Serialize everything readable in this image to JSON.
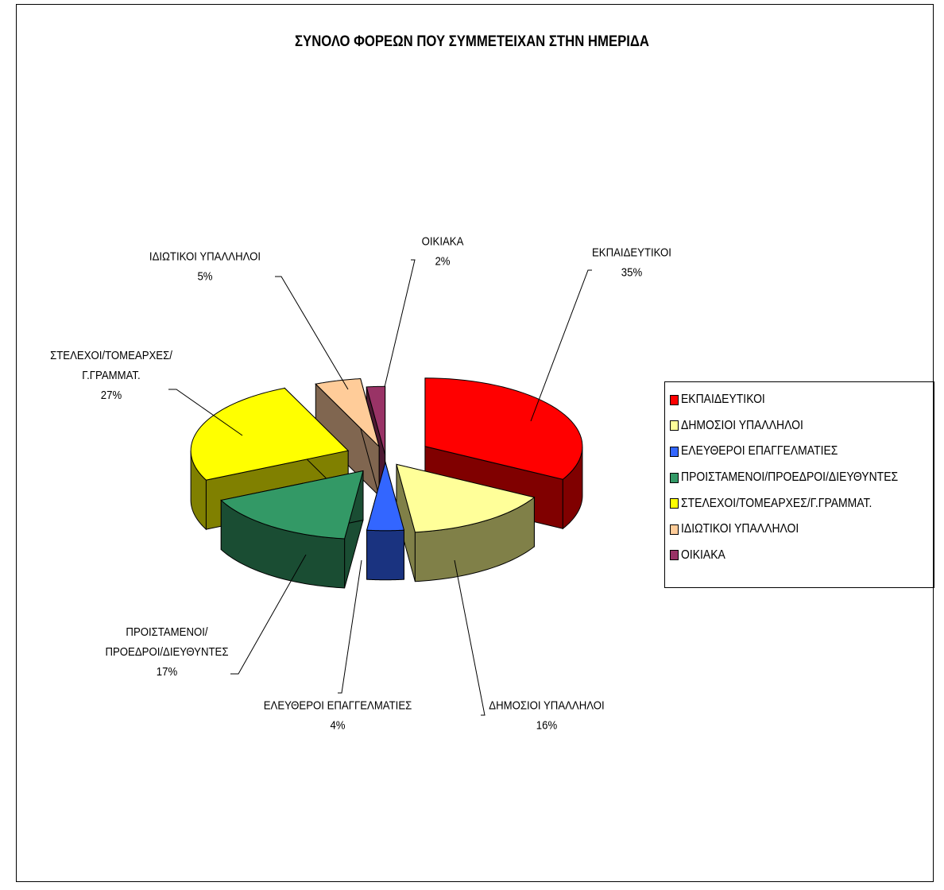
{
  "chart_data": {
    "type": "pie",
    "title": "ΣΥΝΟΛΟ ΦΟΡΕΩΝ ΠΟΥ ΣΥΜΜΕΤΕΙΧΑΝ ΣΤΗΝ ΗΜΕΡΙΔΑ",
    "three_d": true,
    "exploded": true,
    "legend_position": "right",
    "slices": [
      {
        "name": "ΕΚΠΑΙΔΕΥΤΙΚΟΙ",
        "value": 35,
        "label": "35%",
        "color": "#ff0000",
        "side_color": "#800000",
        "chart_label_lines": [
          "ΕΚΠΑΙΔΕΥΤΙΚΟΙ",
          "35%"
        ]
      },
      {
        "name": "ΔΗΜΟΣΙΟΙ ΥΠΑΛΛΗΛΟΙ",
        "value": 16,
        "label": "16%",
        "color": "#ffff99",
        "side_color": "#808048",
        "chart_label_lines": [
          "ΔΗΜΟΣΙΟΙ ΥΠΑΛΛΗΛΟΙ",
          "16%"
        ]
      },
      {
        "name": "ΕΛΕΥΘΕΡΟΙ ΕΠΑΓΓΕΛΜΑΤΙΕΣ",
        "value": 4,
        "label": "4%",
        "color": "#3366ff",
        "side_color": "#1a3380",
        "chart_label_lines": [
          "ΕΛΕΥΘΕΡΟΙ ΕΠΑΓΓΕΛΜΑΤΙΕΣ",
          "4%"
        ]
      },
      {
        "name": "ΠΡΟΙΣΤΑΜΕΝΟΙ/ΠΡΟΕΔΡΟΙ/ΔΙΕΥΘΥΝΤΕΣ",
        "value": 17,
        "label": "17%",
        "color": "#339966",
        "side_color": "#1a4d33",
        "chart_label_lines": [
          "ΠΡΟΙΣΤΑΜΕΝΟΙ/",
          "ΠΡΟΕΔΡΟΙ/ΔΙΕΥΘΥΝΤΕΣ",
          "17%"
        ]
      },
      {
        "name": "ΣΤΕΛΕΧΟΙ/ΤΟΜΕΑΡΧΕΣ/Γ.ΓΡΑΜΜΑΤ.",
        "value": 27,
        "label": "27%",
        "color": "#ffff00",
        "side_color": "#808000",
        "chart_label_lines": [
          "ΣΤΕΛΕΧΟΙ/ΤΟΜΕΑΡΧΕΣ/",
          "Γ.ΓΡΑΜΜΑΤ.",
          "27%"
        ]
      },
      {
        "name": "ΙΔΙΩΤΙΚΟΙ ΥΠΑΛΛΗΛΟΙ",
        "value": 5,
        "label": "5%",
        "color": "#ffcc99",
        "side_color": "#806650",
        "chart_label_lines": [
          "ΙΔΙΩΤΙΚΟΙ ΥΠΑΛΛΗΛΟΙ",
          "5%"
        ]
      },
      {
        "name": "ΟΙΚΙΑΚΑ",
        "value": 2,
        "label": "2%",
        "color": "#993366",
        "side_color": "#4d1a33",
        "chart_label_lines": [
          "ΟΙΚΙΑΚΑ",
          "2%"
        ]
      }
    ]
  }
}
